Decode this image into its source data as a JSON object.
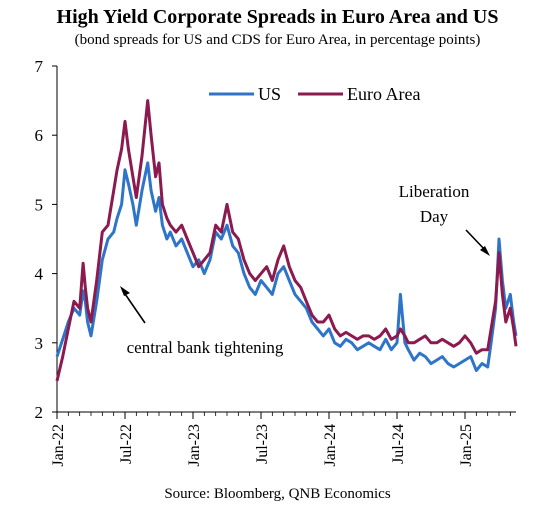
{
  "title": "High Yield Corporate Spreads in Euro Area and US",
  "subtitle": "(bond spreads for US and CDS for Euro Area, in percentage points)",
  "source": "Source: Bloomberg, QNB Economics",
  "chart_data": {
    "type": "line",
    "ylim": [
      2,
      7
    ],
    "yticks": [
      "2",
      "3",
      "4",
      "5",
      "6",
      "7"
    ],
    "xlim": [
      0,
      40.5
    ],
    "xticks": [
      {
        "label": "Jan-22",
        "x": 0
      },
      {
        "label": "Jul-22",
        "x": 6
      },
      {
        "label": "Jan-23",
        "x": 12
      },
      {
        "label": "Jul-23",
        "x": 18
      },
      {
        "label": "Jan-24",
        "x": 24
      },
      {
        "label": "Jul-24",
        "x": 30
      },
      {
        "label": "Jan-25",
        "x": 36
      }
    ],
    "grid": false,
    "legend_position": "top-right",
    "annotations": [
      {
        "text": "central bank tightening"
      },
      {
        "text": "Liberation"
      },
      {
        "text": "Day"
      }
    ],
    "series": [
      {
        "name": "US",
        "color": "#2e75c9",
        "x": [
          0,
          0.5,
          1,
          1.5,
          2,
          2.3,
          2.5,
          2.7,
          3,
          3.5,
          4,
          4.5,
          5,
          5.3,
          5.7,
          6,
          6.3,
          6.7,
          7,
          7.5,
          8,
          8.3,
          8.7,
          9,
          9.3,
          9.7,
          10,
          10.5,
          11,
          11.5,
          12,
          12.5,
          13,
          13.5,
          14,
          14.5,
          15,
          15.5,
          16,
          16.5,
          17,
          17.5,
          18,
          18.5,
          19,
          19.5,
          20,
          20.5,
          21,
          21.5,
          22,
          22.5,
          23,
          23.5,
          24,
          24.5,
          25,
          25.5,
          26,
          26.5,
          27,
          27.5,
          28,
          28.5,
          29,
          29.5,
          30,
          30.3,
          30.7,
          31,
          31.5,
          32,
          32.5,
          33,
          33.5,
          34,
          34.5,
          35,
          35.5,
          36,
          36.5,
          37,
          37.5,
          38,
          38.3,
          38.7,
          39,
          39.3,
          39.6,
          40,
          40.3,
          40.5
        ],
        "values": [
          2.8,
          3.05,
          3.3,
          3.5,
          3.4,
          3.75,
          3.6,
          3.3,
          3.1,
          3.6,
          4.2,
          4.5,
          4.6,
          4.8,
          5.0,
          5.5,
          5.3,
          5.0,
          4.7,
          5.2,
          5.6,
          5.2,
          4.9,
          5.1,
          4.7,
          4.5,
          4.6,
          4.4,
          4.5,
          4.3,
          4.1,
          4.2,
          4.0,
          4.2,
          4.6,
          4.5,
          4.7,
          4.4,
          4.3,
          4.0,
          3.8,
          3.7,
          3.9,
          3.8,
          3.7,
          4.0,
          4.1,
          3.9,
          3.7,
          3.6,
          3.5,
          3.3,
          3.2,
          3.1,
          3.2,
          3.0,
          2.95,
          3.05,
          3.0,
          2.9,
          2.95,
          3.0,
          2.95,
          2.9,
          3.05,
          2.9,
          3.0,
          3.7,
          3.0,
          2.9,
          2.75,
          2.85,
          2.8,
          2.7,
          2.75,
          2.8,
          2.7,
          2.65,
          2.7,
          2.75,
          2.8,
          2.6,
          2.7,
          2.65,
          3.0,
          3.5,
          4.5,
          3.9,
          3.5,
          3.7,
          3.3,
          3.1
        ]
      },
      {
        "name": "Euro Area",
        "color": "#8b1a4f",
        "x": [
          0,
          0.5,
          1,
          1.5,
          2,
          2.3,
          2.5,
          2.7,
          3,
          3.5,
          4,
          4.5,
          5,
          5.3,
          5.7,
          6,
          6.3,
          6.7,
          7,
          7.5,
          8,
          8.3,
          8.7,
          9,
          9.3,
          9.7,
          10,
          10.5,
          11,
          11.5,
          12,
          12.5,
          13,
          13.5,
          14,
          14.5,
          15,
          15.5,
          16,
          16.5,
          17,
          17.5,
          18,
          18.5,
          19,
          19.5,
          20,
          20.5,
          21,
          21.5,
          22,
          22.5,
          23,
          23.5,
          24,
          24.5,
          25,
          25.5,
          26,
          26.5,
          27,
          27.5,
          28,
          28.5,
          29,
          29.5,
          30,
          30.3,
          30.7,
          31,
          31.5,
          32,
          32.5,
          33,
          33.5,
          34,
          34.5,
          35,
          35.5,
          36,
          36.5,
          37,
          37.5,
          38,
          38.3,
          38.7,
          39,
          39.3,
          39.6,
          40,
          40.3,
          40.5
        ],
        "values": [
          2.45,
          2.8,
          3.2,
          3.6,
          3.5,
          4.15,
          3.8,
          3.5,
          3.3,
          3.9,
          4.6,
          4.7,
          5.2,
          5.5,
          5.8,
          6.2,
          5.8,
          5.4,
          5.1,
          5.7,
          6.5,
          6.0,
          5.4,
          5.6,
          5.0,
          4.8,
          4.7,
          4.6,
          4.7,
          4.5,
          4.3,
          4.1,
          4.2,
          4.3,
          4.7,
          4.6,
          5.0,
          4.6,
          4.5,
          4.2,
          4.0,
          3.9,
          4.0,
          4.1,
          3.9,
          4.2,
          4.4,
          4.1,
          3.9,
          3.8,
          3.6,
          3.4,
          3.3,
          3.3,
          3.4,
          3.2,
          3.1,
          3.15,
          3.1,
          3.05,
          3.1,
          3.1,
          3.05,
          3.1,
          3.2,
          3.05,
          3.1,
          3.2,
          3.1,
          3.0,
          3.0,
          3.05,
          3.1,
          3.0,
          3.0,
          3.05,
          3.0,
          2.95,
          3.0,
          3.1,
          3.0,
          2.85,
          2.9,
          2.9,
          3.2,
          3.6,
          4.3,
          3.7,
          3.3,
          3.5,
          3.2,
          2.95
        ]
      }
    ]
  }
}
